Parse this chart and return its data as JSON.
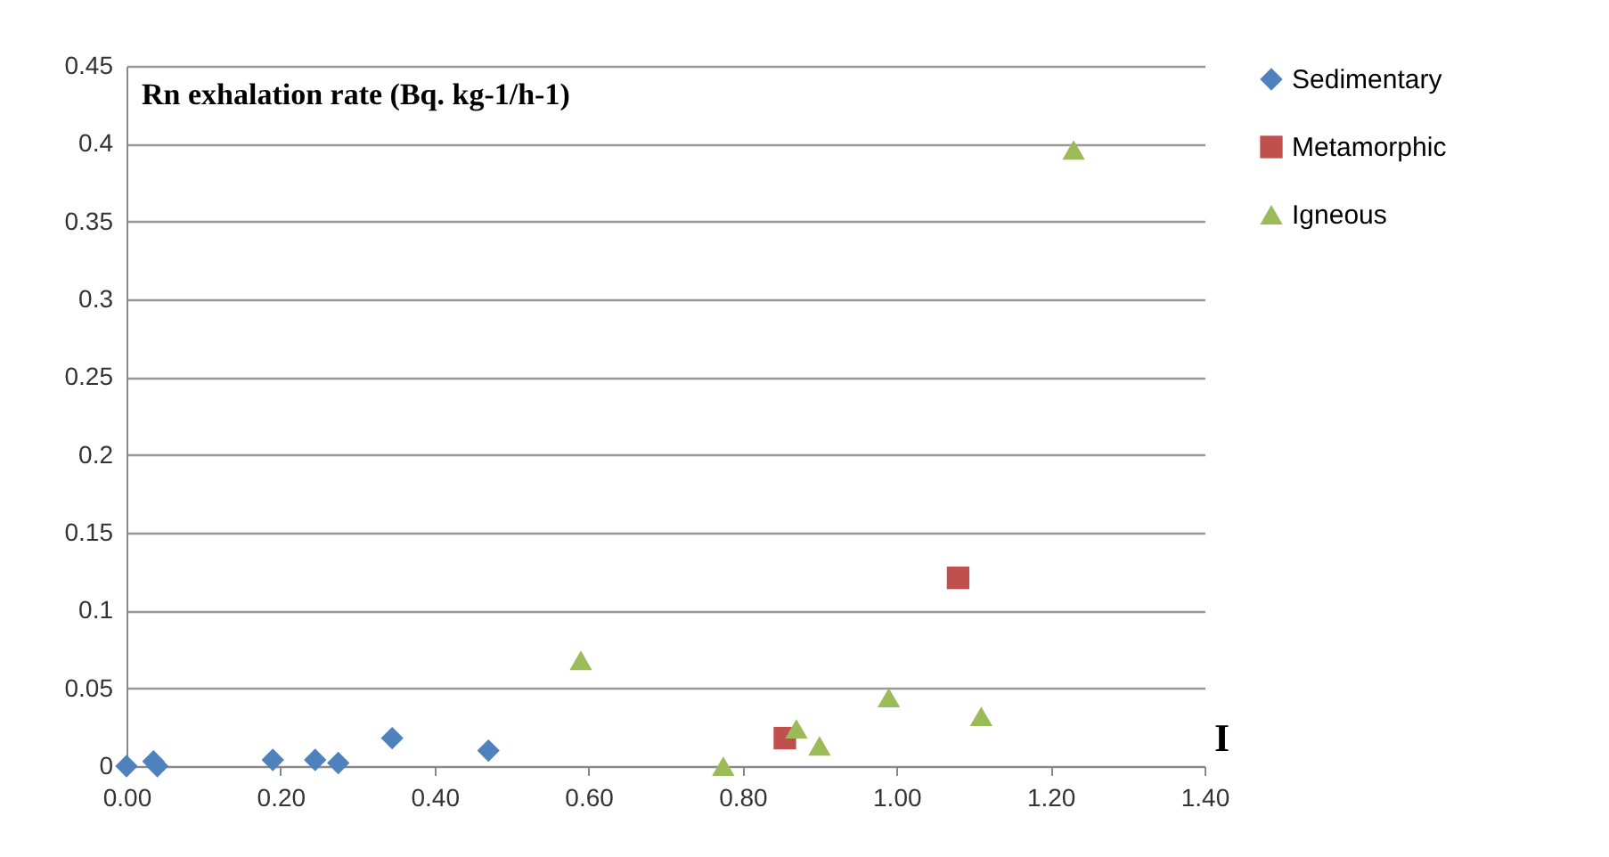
{
  "chart_data": {
    "type": "scatter",
    "ylabel": "Rn exhalation rate (Bq. kg-1/h-1)",
    "xlabel": "I",
    "xlim": [
      0,
      1.4
    ],
    "xticks": [
      {
        "value": 0,
        "label": "0.00"
      },
      {
        "value": 0.2,
        "label": "0.20"
      },
      {
        "value": 0.4,
        "label": "0.40"
      },
      {
        "value": 0.6,
        "label": "0.60"
      },
      {
        "value": 0.8,
        "label": "0.80"
      },
      {
        "value": 1,
        "label": "1.00"
      },
      {
        "value": 1.2,
        "label": "1.20"
      },
      {
        "value": 1.4,
        "label": "1.40"
      }
    ],
    "ylim": [
      0,
      0.45
    ],
    "yticks": [
      0,
      0.05,
      {
        "value": 0.1,
        "label": "0.1"
      },
      0.15,
      {
        "value": 0.2,
        "label": "0.2"
      },
      0.25,
      {
        "value": 0.3,
        "label": "0.3"
      },
      0.35,
      {
        "value": 0.4,
        "label": "0.4"
      },
      0.45
    ],
    "grid": "y",
    "legend": "right",
    "series": [
      {
        "name": "Sedimentary",
        "color": "#4f81bd",
        "marker": "diamond",
        "x": [
          0.0,
          0.035,
          0.04,
          0.19,
          0.245,
          0.275,
          0.345,
          0.47
        ],
        "values": [
          0.0,
          0.003,
          0.0,
          0.004,
          0.004,
          0.002,
          0.018,
          0.01
        ]
      },
      {
        "name": "Metamorphic",
        "color": "#c0504d",
        "marker": "square",
        "x": [
          0.855,
          1.08
        ],
        "values": [
          0.018,
          0.121
        ]
      },
      {
        "name": "Igneous",
        "color": "#9bbb59",
        "marker": "triangle",
        "x": [
          0.59,
          0.775,
          0.87,
          0.9,
          0.99,
          1.11,
          1.23
        ],
        "values": [
          0.068,
          0.0,
          0.024,
          0.013,
          0.044,
          0.032,
          0.396
        ]
      }
    ]
  }
}
